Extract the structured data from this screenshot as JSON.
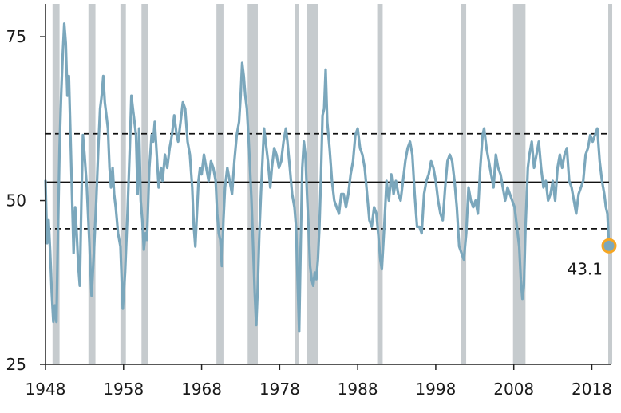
{
  "chart_data": {
    "type": "line",
    "title": "",
    "xlabel": "",
    "ylabel": "",
    "xlim": [
      1948,
      2020.2
    ],
    "ylim": [
      25,
      80
    ],
    "x_ticks": [
      "1948",
      "1958",
      "1968",
      "1978",
      "1988",
      "1998",
      "2008",
      "2018"
    ],
    "y_ticks": [
      "25",
      "50",
      "75"
    ],
    "grid": false,
    "legend": "none",
    "recession_periods": [
      [
        1948.9,
        1949.8
      ],
      [
        1953.5,
        1954.4
      ],
      [
        1957.6,
        1958.3
      ],
      [
        1960.3,
        1961.1
      ],
      [
        1969.9,
        1970.9
      ],
      [
        1973.9,
        1975.2
      ],
      [
        1980.0,
        1980.5
      ],
      [
        1981.5,
        1982.9
      ],
      [
        1990.5,
        1991.2
      ],
      [
        2001.2,
        2001.9
      ],
      [
        2007.9,
        2009.5
      ],
      [
        2020.1,
        2020.2
      ]
    ],
    "reference_lines": [
      {
        "y": 60.2,
        "style": "dashed"
      },
      {
        "y": 52.8,
        "style": "solid"
      },
      {
        "y": 45.7,
        "style": "dashed"
      }
    ],
    "series": [
      {
        "color": "#7ba7bc",
        "points": [
          [
            1948.0,
            53
          ],
          [
            1948.2,
            43.5
          ],
          [
            1948.4,
            47
          ],
          [
            1948.6,
            42
          ],
          [
            1948.8,
            36
          ],
          [
            1949.0,
            31.5
          ],
          [
            1949.2,
            34
          ],
          [
            1949.4,
            31.5
          ],
          [
            1949.6,
            45
          ],
          [
            1949.8,
            58
          ],
          [
            1950.0,
            66
          ],
          [
            1950.2,
            72
          ],
          [
            1950.4,
            77
          ],
          [
            1950.6,
            74
          ],
          [
            1950.8,
            66
          ],
          [
            1951.0,
            69
          ],
          [
            1951.2,
            60
          ],
          [
            1951.4,
            51
          ],
          [
            1951.6,
            42
          ],
          [
            1951.8,
            49
          ],
          [
            1952.0,
            45
          ],
          [
            1952.2,
            40
          ],
          [
            1952.4,
            37
          ],
          [
            1952.6,
            50
          ],
          [
            1952.8,
            60
          ],
          [
            1953.0,
            57
          ],
          [
            1953.3,
            52
          ],
          [
            1953.6,
            44
          ],
          [
            1953.9,
            35.5
          ],
          [
            1954.2,
            42
          ],
          [
            1954.5,
            50
          ],
          [
            1954.8,
            59
          ],
          [
            1955.0,
            64
          ],
          [
            1955.2,
            66
          ],
          [
            1955.4,
            69
          ],
          [
            1955.6,
            65
          ],
          [
            1955.8,
            63
          ],
          [
            1956.0,
            61
          ],
          [
            1956.2,
            55
          ],
          [
            1956.4,
            52
          ],
          [
            1956.6,
            55
          ],
          [
            1956.8,
            51
          ],
          [
            1957.0,
            49
          ],
          [
            1957.3,
            45
          ],
          [
            1957.6,
            43
          ],
          [
            1957.9,
            33.5
          ],
          [
            1958.2,
            39
          ],
          [
            1958.5,
            48
          ],
          [
            1958.8,
            58
          ],
          [
            1959.0,
            66
          ],
          [
            1959.2,
            64
          ],
          [
            1959.4,
            62
          ],
          [
            1959.6,
            60
          ],
          [
            1959.8,
            51
          ],
          [
            1960.0,
            61
          ],
          [
            1960.2,
            50
          ],
          [
            1960.4,
            47
          ],
          [
            1960.6,
            42.5
          ],
          [
            1960.8,
            45
          ],
          [
            1961.0,
            44
          ],
          [
            1961.3,
            55
          ],
          [
            1961.6,
            60
          ],
          [
            1961.8,
            59
          ],
          [
            1962.0,
            62
          ],
          [
            1962.2,
            58
          ],
          [
            1962.5,
            52
          ],
          [
            1962.8,
            55
          ],
          [
            1963.0,
            53
          ],
          [
            1963.3,
            57
          ],
          [
            1963.6,
            55
          ],
          [
            1963.9,
            58
          ],
          [
            1964.2,
            60
          ],
          [
            1964.5,
            63
          ],
          [
            1964.8,
            60
          ],
          [
            1965.0,
            59
          ],
          [
            1965.3,
            62
          ],
          [
            1965.6,
            65
          ],
          [
            1965.9,
            64
          ],
          [
            1966.2,
            59
          ],
          [
            1966.5,
            57
          ],
          [
            1966.8,
            52
          ],
          [
            1967.0,
            46
          ],
          [
            1967.2,
            43
          ],
          [
            1967.4,
            48
          ],
          [
            1967.6,
            53
          ],
          [
            1967.8,
            55
          ],
          [
            1968.0,
            54
          ],
          [
            1968.3,
            57
          ],
          [
            1968.6,
            55
          ],
          [
            1968.9,
            53
          ],
          [
            1969.2,
            56
          ],
          [
            1969.5,
            55
          ],
          [
            1969.8,
            53
          ],
          [
            1970.0,
            48
          ],
          [
            1970.2,
            45
          ],
          [
            1970.4,
            44
          ],
          [
            1970.6,
            40
          ],
          [
            1970.8,
            47
          ],
          [
            1971.0,
            52
          ],
          [
            1971.3,
            55
          ],
          [
            1971.6,
            53
          ],
          [
            1971.9,
            51
          ],
          [
            1972.2,
            56
          ],
          [
            1972.5,
            60
          ],
          [
            1972.8,
            62
          ],
          [
            1973.0,
            66
          ],
          [
            1973.2,
            71
          ],
          [
            1973.4,
            69
          ],
          [
            1973.6,
            66
          ],
          [
            1973.8,
            64
          ],
          [
            1974.0,
            60
          ],
          [
            1974.2,
            55
          ],
          [
            1974.4,
            50
          ],
          [
            1974.6,
            43
          ],
          [
            1974.8,
            36
          ],
          [
            1975.0,
            31
          ],
          [
            1975.2,
            37
          ],
          [
            1975.4,
            45
          ],
          [
            1975.6,
            51
          ],
          [
            1975.8,
            56
          ],
          [
            1976.0,
            61
          ],
          [
            1976.2,
            59
          ],
          [
            1976.5,
            56
          ],
          [
            1976.8,
            52
          ],
          [
            1977.0,
            55
          ],
          [
            1977.3,
            58
          ],
          [
            1977.6,
            57
          ],
          [
            1977.9,
            55
          ],
          [
            1978.2,
            56
          ],
          [
            1978.5,
            59
          ],
          [
            1978.8,
            61
          ],
          [
            1979.0,
            59
          ],
          [
            1979.3,
            55
          ],
          [
            1979.6,
            51
          ],
          [
            1979.9,
            49
          ],
          [
            1980.1,
            46
          ],
          [
            1980.3,
            38
          ],
          [
            1980.5,
            30
          ],
          [
            1980.7,
            44
          ],
          [
            1980.9,
            55
          ],
          [
            1981.1,
            59
          ],
          [
            1981.3,
            57
          ],
          [
            1981.5,
            51
          ],
          [
            1981.7,
            46
          ],
          [
            1981.9,
            40
          ],
          [
            1982.1,
            38
          ],
          [
            1982.3,
            37
          ],
          [
            1982.5,
            39
          ],
          [
            1982.7,
            38
          ],
          [
            1982.9,
            41
          ],
          [
            1983.1,
            46
          ],
          [
            1983.3,
            54
          ],
          [
            1983.5,
            63
          ],
          [
            1983.7,
            64
          ],
          [
            1983.9,
            70
          ],
          [
            1984.1,
            62
          ],
          [
            1984.4,
            58
          ],
          [
            1984.7,
            53
          ],
          [
            1985.0,
            50
          ],
          [
            1985.3,
            49
          ],
          [
            1985.6,
            48
          ],
          [
            1985.9,
            51
          ],
          [
            1986.2,
            51
          ],
          [
            1986.5,
            49
          ],
          [
            1986.8,
            51
          ],
          [
            1987.1,
            54
          ],
          [
            1987.4,
            56
          ],
          [
            1987.7,
            60
          ],
          [
            1988.0,
            61
          ],
          [
            1988.3,
            58
          ],
          [
            1988.6,
            57
          ],
          [
            1988.9,
            55
          ],
          [
            1989.2,
            51
          ],
          [
            1989.5,
            47
          ],
          [
            1989.8,
            46
          ],
          [
            1990.1,
            49
          ],
          [
            1990.4,
            48
          ],
          [
            1990.7,
            44
          ],
          [
            1990.9,
            41
          ],
          [
            1991.1,
            39.5
          ],
          [
            1991.4,
            46
          ],
          [
            1991.7,
            53
          ],
          [
            1992.0,
            50
          ],
          [
            1992.3,
            54
          ],
          [
            1992.6,
            51
          ],
          [
            1992.9,
            53
          ],
          [
            1993.2,
            51
          ],
          [
            1993.5,
            50
          ],
          [
            1993.8,
            53
          ],
          [
            1994.1,
            56
          ],
          [
            1994.4,
            58
          ],
          [
            1994.7,
            59
          ],
          [
            1995.0,
            57
          ],
          [
            1995.3,
            51
          ],
          [
            1995.6,
            46
          ],
          [
            1995.9,
            46
          ],
          [
            1996.2,
            45
          ],
          [
            1996.5,
            51
          ],
          [
            1996.8,
            53
          ],
          [
            1997.1,
            54
          ],
          [
            1997.4,
            56
          ],
          [
            1997.7,
            55
          ],
          [
            1998.0,
            53
          ],
          [
            1998.3,
            50
          ],
          [
            1998.6,
            48
          ],
          [
            1998.9,
            47
          ],
          [
            1999.2,
            52
          ],
          [
            1999.5,
            56
          ],
          [
            1999.8,
            57
          ],
          [
            2000.1,
            56
          ],
          [
            2000.4,
            53
          ],
          [
            2000.7,
            49
          ],
          [
            2001.0,
            43
          ],
          [
            2001.3,
            42
          ],
          [
            2001.6,
            41
          ],
          [
            2001.9,
            45
          ],
          [
            2002.2,
            52
          ],
          [
            2002.5,
            50
          ],
          [
            2002.8,
            49
          ],
          [
            2003.1,
            50
          ],
          [
            2003.4,
            48
          ],
          [
            2003.7,
            55
          ],
          [
            2004.0,
            60
          ],
          [
            2004.2,
            61
          ],
          [
            2004.5,
            58
          ],
          [
            2004.8,
            56
          ],
          [
            2005.1,
            54
          ],
          [
            2005.4,
            52
          ],
          [
            2005.7,
            57
          ],
          [
            2006.0,
            55
          ],
          [
            2006.3,
            54
          ],
          [
            2006.6,
            52
          ],
          [
            2006.9,
            50
          ],
          [
            2007.2,
            52
          ],
          [
            2007.5,
            51
          ],
          [
            2007.8,
            50
          ],
          [
            2008.1,
            49
          ],
          [
            2008.4,
            46
          ],
          [
            2008.7,
            43
          ],
          [
            2008.9,
            38
          ],
          [
            2009.1,
            35
          ],
          [
            2009.3,
            37
          ],
          [
            2009.5,
            46
          ],
          [
            2009.8,
            55
          ],
          [
            2010.0,
            57
          ],
          [
            2010.3,
            59
          ],
          [
            2010.6,
            55
          ],
          [
            2010.9,
            57
          ],
          [
            2011.2,
            59
          ],
          [
            2011.5,
            55
          ],
          [
            2011.8,
            52
          ],
          [
            2012.1,
            53
          ],
          [
            2012.4,
            50
          ],
          [
            2012.7,
            51
          ],
          [
            2013.0,
            53
          ],
          [
            2013.3,
            50
          ],
          [
            2013.6,
            55
          ],
          [
            2013.9,
            57
          ],
          [
            2014.2,
            55
          ],
          [
            2014.5,
            57
          ],
          [
            2014.8,
            58
          ],
          [
            2015.1,
            53
          ],
          [
            2015.4,
            52
          ],
          [
            2015.7,
            50
          ],
          [
            2016.0,
            48
          ],
          [
            2016.3,
            51
          ],
          [
            2016.6,
            52
          ],
          [
            2016.9,
            53
          ],
          [
            2017.2,
            57
          ],
          [
            2017.5,
            58
          ],
          [
            2017.8,
            60
          ],
          [
            2018.1,
            59
          ],
          [
            2018.4,
            60
          ],
          [
            2018.7,
            61
          ],
          [
            2019.0,
            56
          ],
          [
            2019.3,
            53
          ],
          [
            2019.6,
            51
          ],
          [
            2019.8,
            49
          ],
          [
            2020.0,
            48
          ],
          [
            2020.2,
            43.1
          ]
        ]
      }
    ],
    "annotations": [
      {
        "x": 2020.2,
        "y": 43.1,
        "label": "43.1",
        "marker_color": "#f5a623"
      }
    ]
  }
}
